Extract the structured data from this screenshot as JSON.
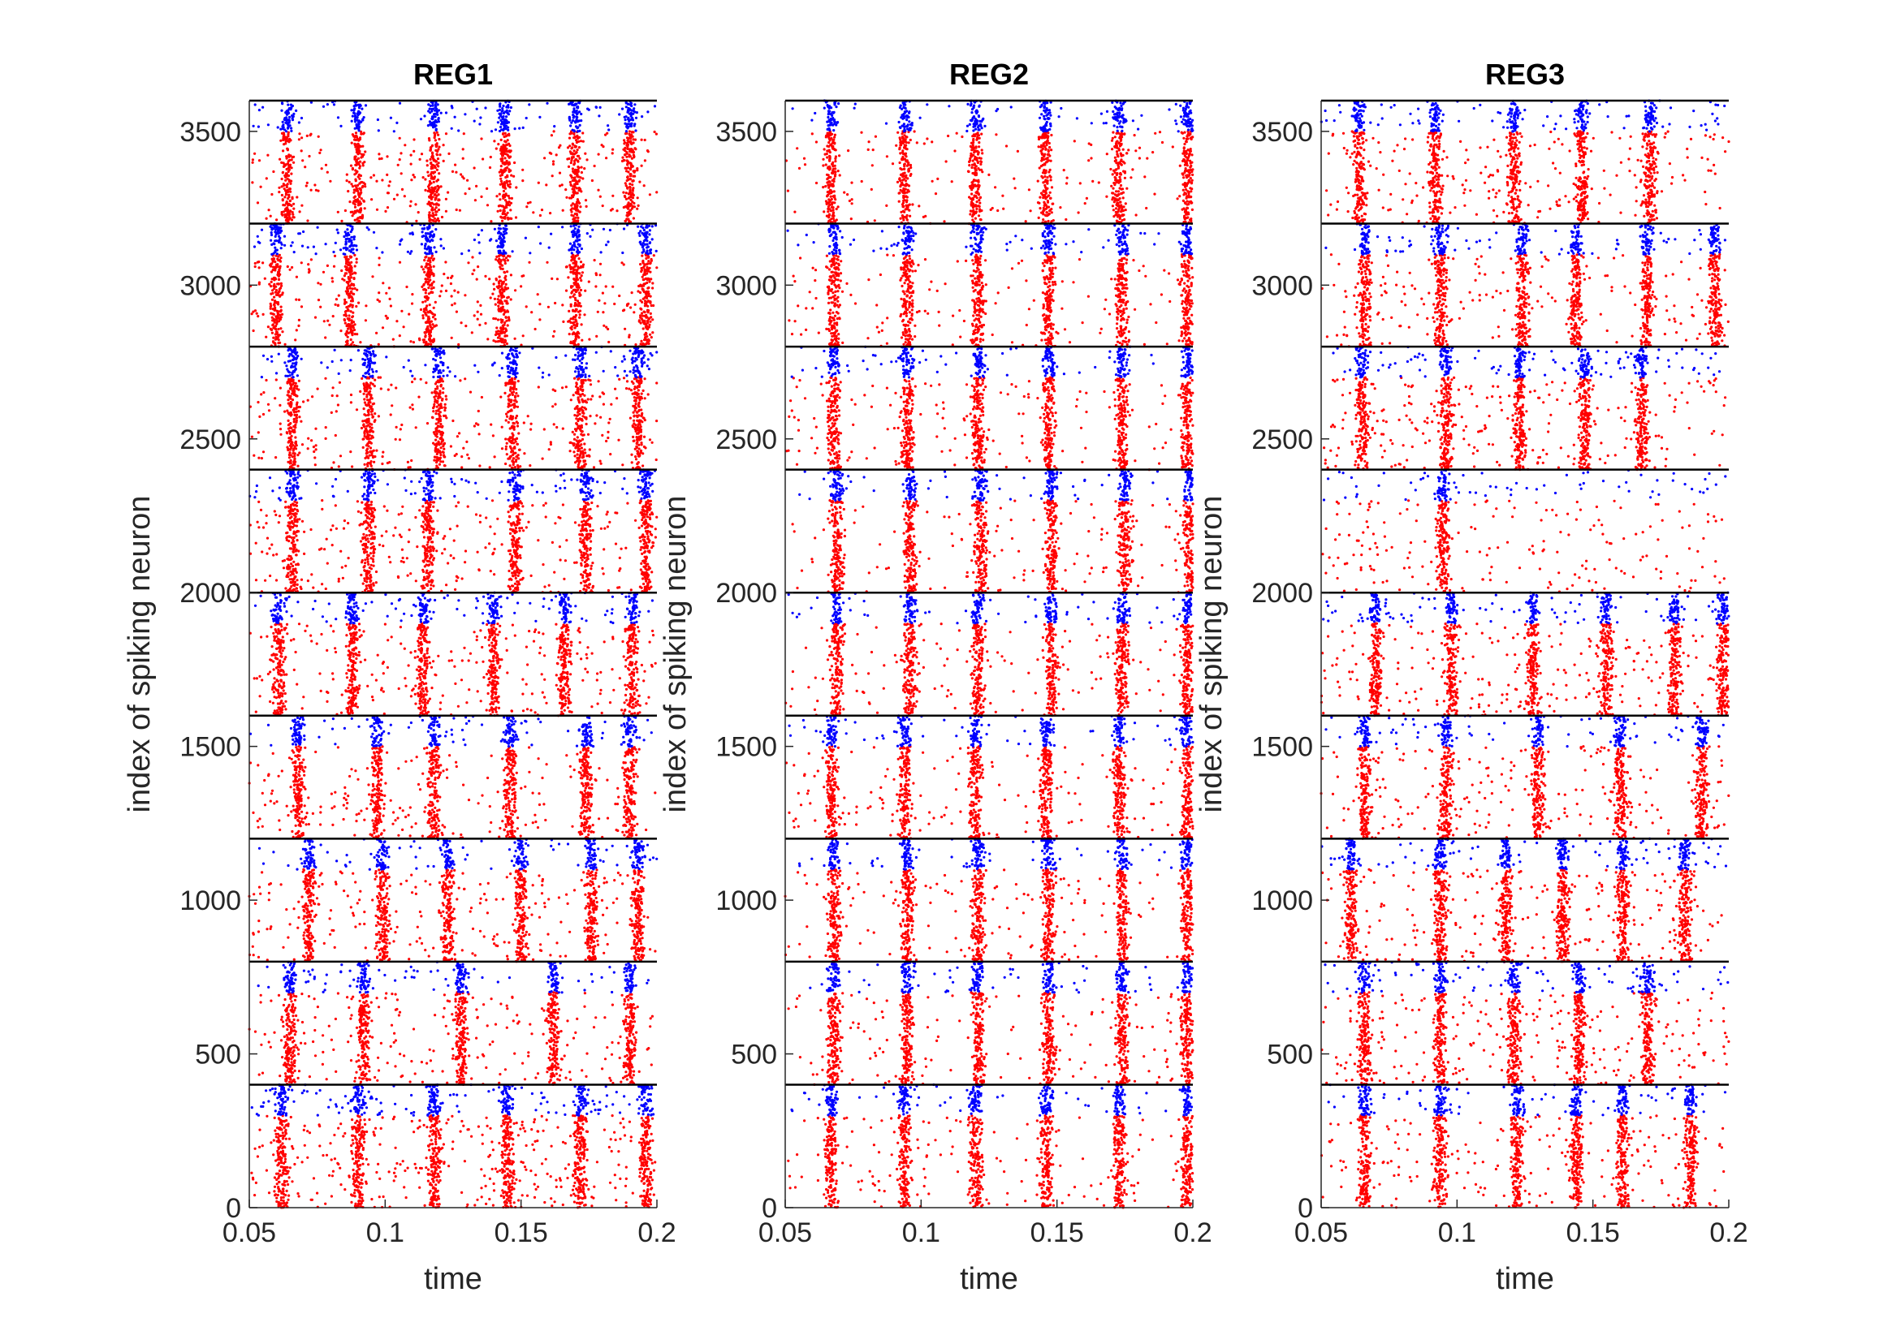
{
  "chart_data": [
    {
      "type": "scatter",
      "title": "REG1",
      "xlabel": "time",
      "ylabel": "index of spiking neuron",
      "xlim": [
        0.05,
        0.2
      ],
      "ylim": [
        0,
        3600
      ],
      "xticks": [
        "0.05",
        "0.1",
        "0.15",
        "0.2"
      ],
      "yticks": [
        "0",
        "500",
        "1000",
        "1500",
        "2000",
        "2500",
        "3000",
        "3500"
      ],
      "group_size": 400,
      "group_boundaries": [
        400,
        800,
        1200,
        1600,
        2000,
        2400,
        2800,
        3200,
        3600
      ],
      "series": [
        {
          "color": "#ff0000",
          "neuron_index_range_in_group": [
            0,
            300
          ]
        },
        {
          "color": "#0000ff",
          "neuron_index_range_in_group": [
            300,
            400
          ]
        }
      ],
      "synchrony_times": [
        [
          0.062,
          0.09,
          0.118,
          0.145,
          0.172,
          0.196
        ],
        [
          0.065,
          0.092,
          0.128,
          0.162,
          0.19
        ],
        [
          0.072,
          0.099,
          0.123,
          0.15,
          0.176,
          0.193
        ],
        [
          0.068,
          0.097,
          0.118,
          0.146,
          0.174,
          0.19
        ],
        [
          0.061,
          0.088,
          0.114,
          0.14,
          0.166,
          0.191
        ],
        [
          0.066,
          0.094,
          0.116,
          0.148,
          0.174,
          0.196
        ],
        [
          0.066,
          0.094,
          0.12,
          0.147,
          0.172,
          0.193
        ],
        [
          0.06,
          0.087,
          0.116,
          0.143,
          0.17,
          0.196
        ],
        [
          0.064,
          0.09,
          0.118,
          0.144,
          0.17,
          0.19
        ]
      ],
      "background_fraction": [
        0.85,
        0.55,
        0.55,
        0.5,
        0.6,
        0.65,
        0.6,
        0.7,
        0.6
      ]
    },
    {
      "type": "scatter",
      "title": "REG2",
      "xlabel": "time",
      "ylabel": "index of spiking neuron",
      "xlim": [
        0.05,
        0.2
      ],
      "ylim": [
        0,
        3600
      ],
      "xticks": [
        "0.05",
        "0.1",
        "0.15",
        "0.2"
      ],
      "yticks": [
        "0",
        "500",
        "1000",
        "1500",
        "2000",
        "2500",
        "3000",
        "3500"
      ],
      "group_size": 400,
      "group_boundaries": [
        400,
        800,
        1200,
        1600,
        2000,
        2400,
        2800,
        3200,
        3600
      ],
      "series": [
        {
          "color": "#ff0000",
          "neuron_index_range_in_group": [
            0,
            300
          ]
        },
        {
          "color": "#0000ff",
          "neuron_index_range_in_group": [
            300,
            400
          ]
        }
      ],
      "synchrony_times": [
        [
          0.067,
          0.094,
          0.12,
          0.146,
          0.173,
          0.198
        ],
        [
          0.068,
          0.095,
          0.121,
          0.147,
          0.174,
          0.198
        ],
        [
          0.068,
          0.095,
          0.121,
          0.147,
          0.174,
          0.198
        ],
        [
          0.067,
          0.094,
          0.12,
          0.146,
          0.173,
          0.198
        ],
        [
          0.069,
          0.096,
          0.121,
          0.148,
          0.174,
          0.198
        ],
        [
          0.069,
          0.096,
          0.122,
          0.148,
          0.175,
          0.199
        ],
        [
          0.068,
          0.095,
          0.121,
          0.147,
          0.174,
          0.198
        ],
        [
          0.068,
          0.095,
          0.121,
          0.147,
          0.174,
          0.198
        ],
        [
          0.067,
          0.094,
          0.12,
          0.146,
          0.173,
          0.198
        ]
      ],
      "background_fraction": [
        0.35,
        0.35,
        0.35,
        0.35,
        0.35,
        0.35,
        0.35,
        0.35,
        0.35
      ]
    },
    {
      "type": "scatter",
      "title": "REG3",
      "xlabel": "time",
      "ylabel": "index of spiking neuron",
      "xlim": [
        0.05,
        0.2
      ],
      "ylim": [
        0,
        3600
      ],
      "xticks": [
        "0.05",
        "0.1",
        "0.15",
        "0.2"
      ],
      "yticks": [
        "0",
        "500",
        "1000",
        "1500",
        "2000",
        "2500",
        "3000",
        "3500"
      ],
      "group_size": 400,
      "group_boundaries": [
        400,
        800,
        1200,
        1600,
        2000,
        2400,
        2800,
        3200,
        3600
      ],
      "series": [
        {
          "color": "#ff0000",
          "neuron_index_range_in_group": [
            0,
            300
          ]
        },
        {
          "color": "#0000ff",
          "neuron_index_range_in_group": [
            300,
            400
          ]
        }
      ],
      "synchrony_times": [
        [
          0.066,
          0.094,
          0.122,
          0.144,
          0.161,
          0.186
        ],
        [
          0.066,
          0.094,
          0.121,
          0.145,
          0.17
        ],
        [
          0.061,
          0.094,
          0.118,
          0.139,
          0.161,
          0.184
        ],
        [
          0.066,
          0.096,
          0.13,
          0.16,
          0.19
        ],
        [
          0.07,
          0.098,
          0.128,
          0.155,
          0.18,
          0.198
        ],
        [
          0.095
        ],
        [
          0.065,
          0.096,
          0.123,
          0.147,
          0.168
        ],
        [
          0.066,
          0.094,
          0.124,
          0.144,
          0.17,
          0.195
        ],
        [
          0.064,
          0.092,
          0.121,
          0.146,
          0.171
        ]
      ],
      "background_fraction": [
        0.5,
        0.6,
        0.65,
        0.55,
        0.6,
        0.5,
        0.65,
        0.5,
        0.55
      ]
    }
  ]
}
